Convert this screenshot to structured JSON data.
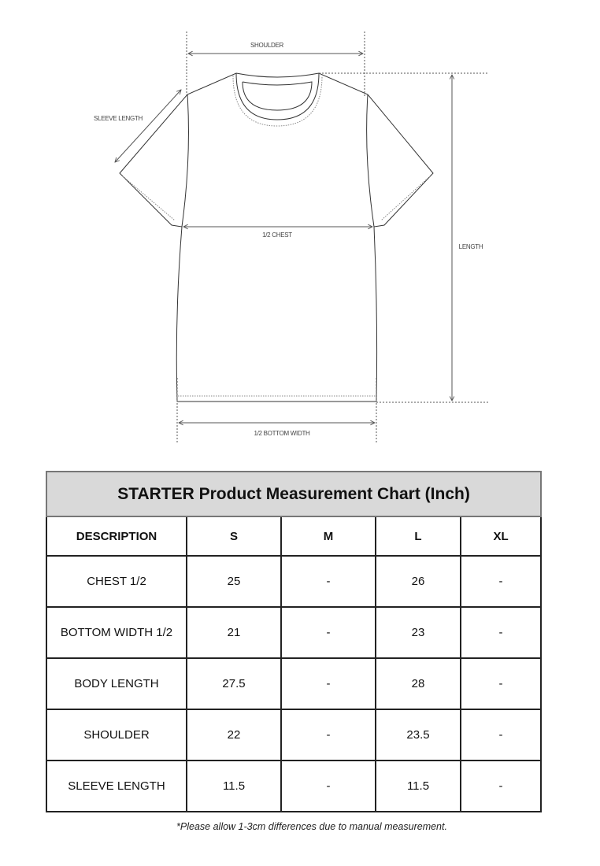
{
  "diagram": {
    "labels": {
      "shoulder": "SHOULDER",
      "sleeve_length": "SLEEVE LENGTH",
      "chest": "1/2 CHEST",
      "length": "LENGTH",
      "bottom_width": "1/2 BOTTOM WIDTH"
    }
  },
  "table": {
    "title": "STARTER Product Measurement Chart (Inch)",
    "headers": [
      "DESCRIPTION",
      "S",
      "M",
      "L",
      "XL"
    ],
    "rows": [
      [
        "CHEST 1/2",
        "25",
        "-",
        "26",
        "-"
      ],
      [
        "BOTTOM WIDTH 1/2",
        "21",
        "-",
        "23",
        "-"
      ],
      [
        "BODY LENGTH",
        "27.5",
        "-",
        "28",
        "-"
      ],
      [
        "SHOULDER",
        "22",
        "-",
        "23.5",
        "-"
      ],
      [
        "SLEEVE LENGTH",
        "11.5",
        "-",
        "11.5",
        "-"
      ]
    ]
  },
  "footnote": "*Please allow 1-3cm differences due to manual measurement."
}
